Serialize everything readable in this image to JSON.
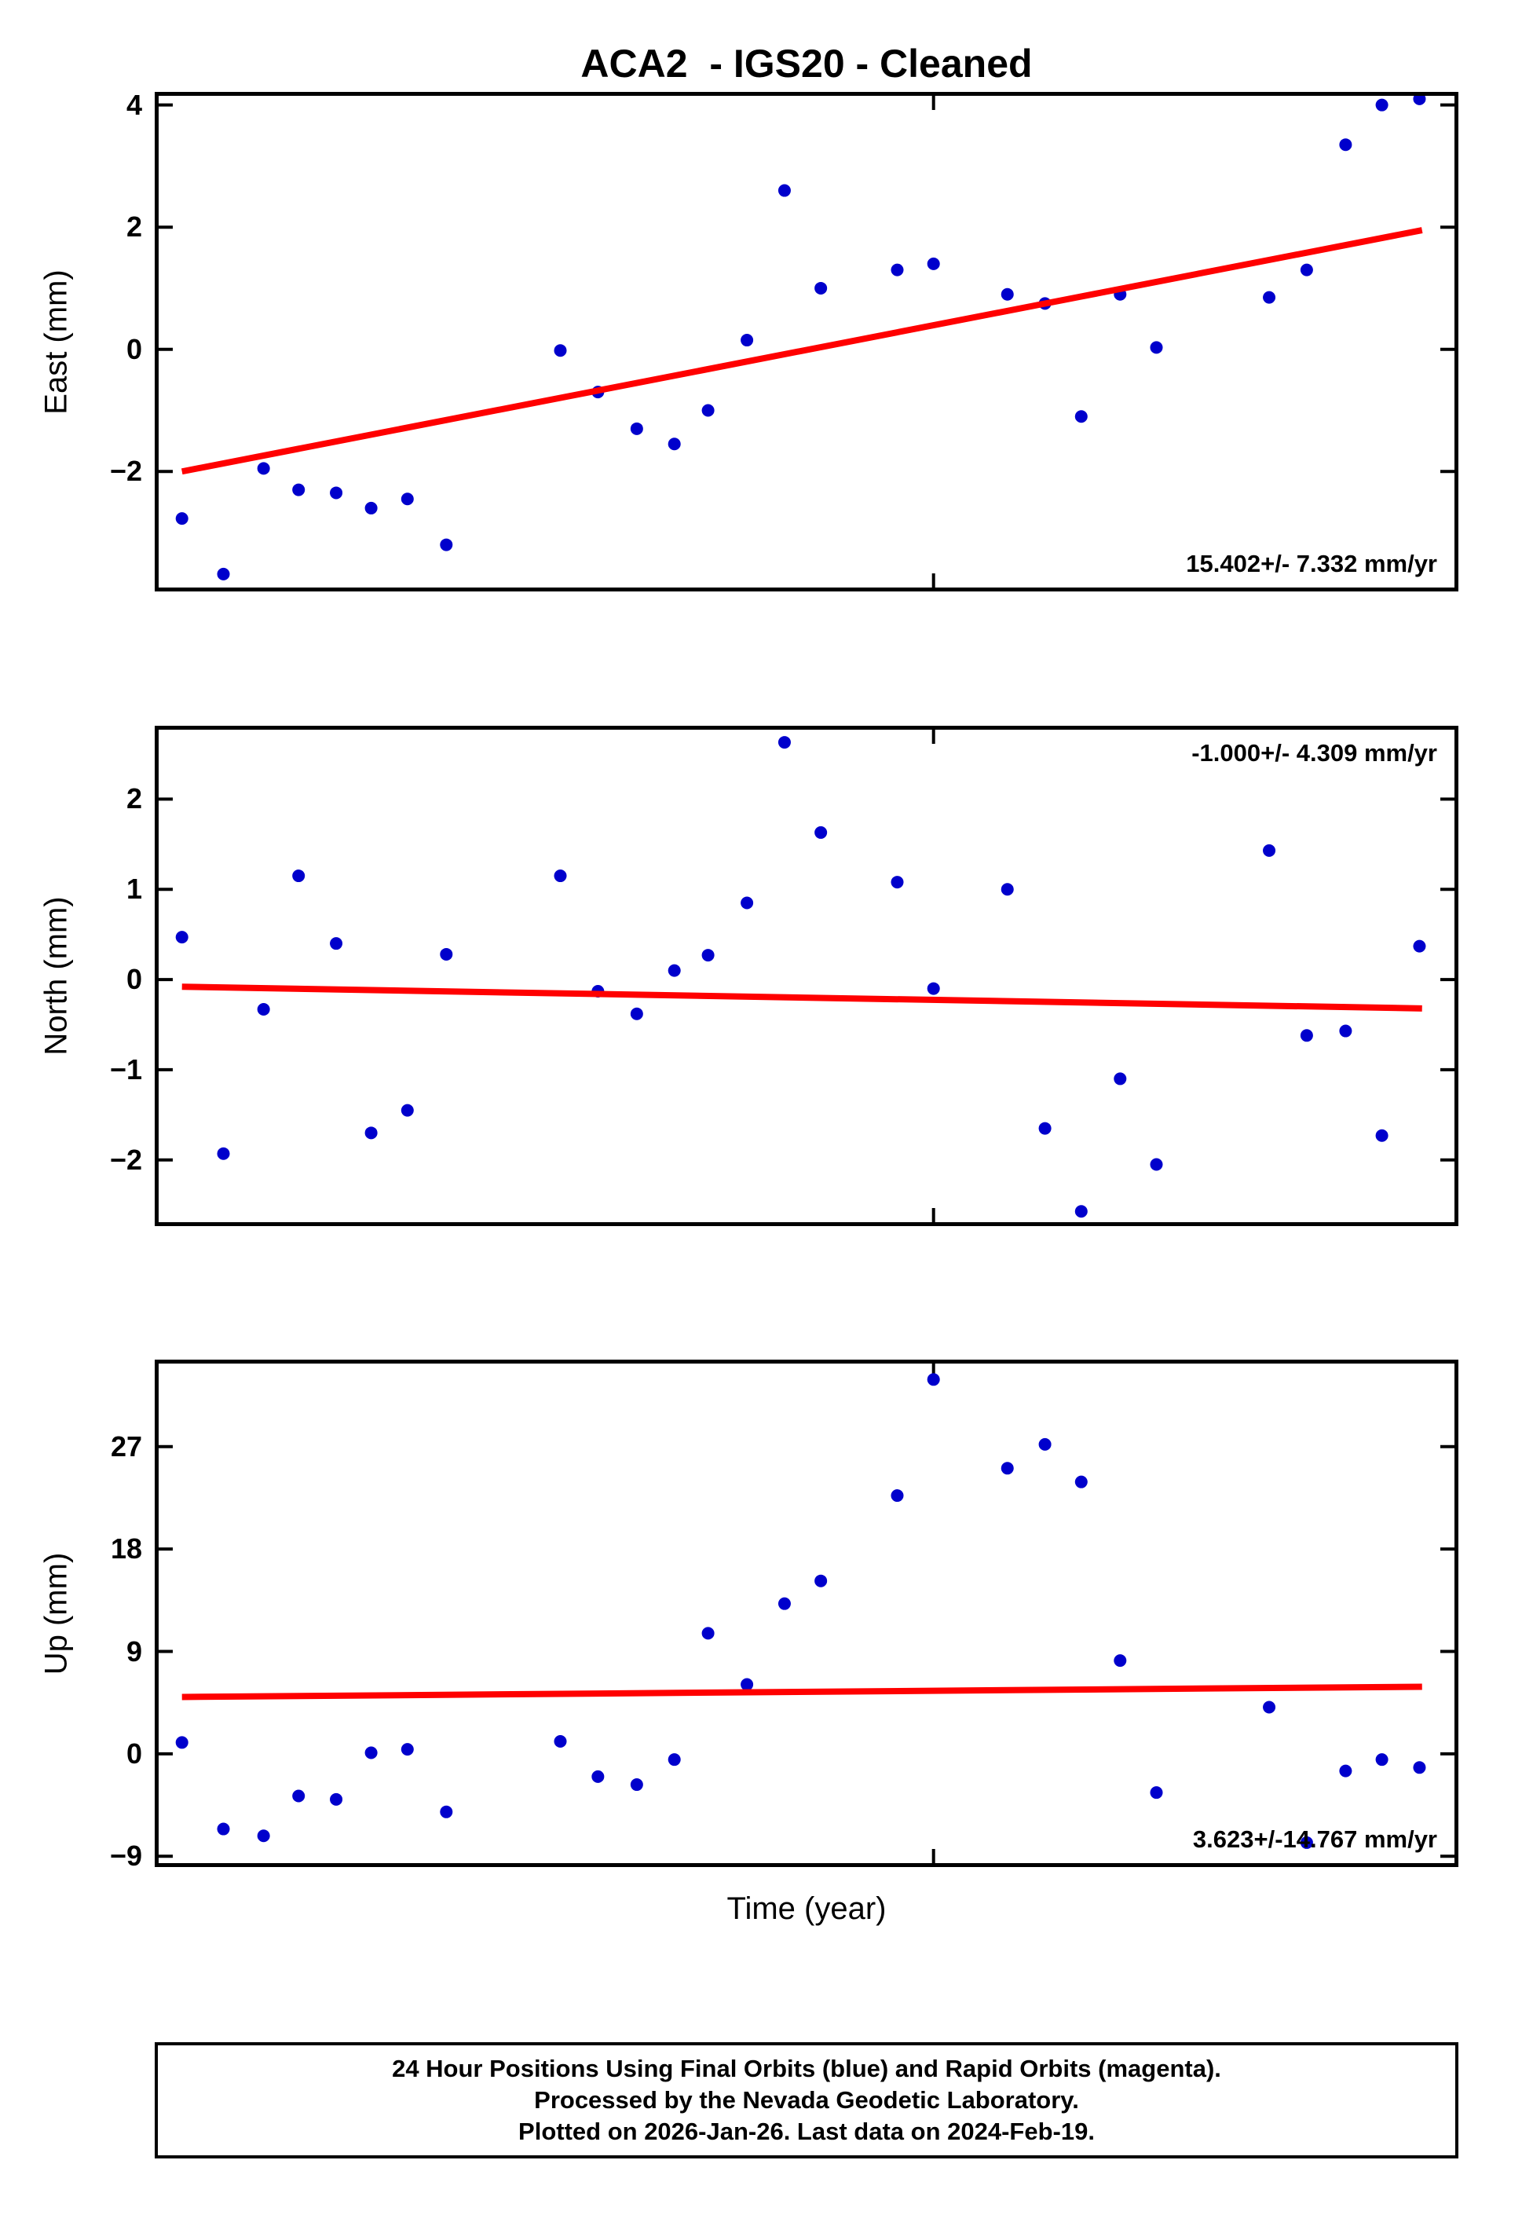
{
  "title": "ACA2  - IGS20 - Cleaned",
  "xlabel": "Time (year)",
  "footer": {
    "line1": "24 Hour Positions Using Final Orbits (blue) and Rapid Orbits (magenta).",
    "line2": "Processed by the Nevada Geodetic Laboratory.",
    "line3": "Plotted on 2026-Jan-26. Last data on 2024-Feb-19."
  },
  "colors": {
    "point": "#0000CC",
    "trend": "#FF0000",
    "frame": "#000000",
    "text": "#000000"
  },
  "chart_data": {
    "type": "scatter",
    "x": [
      0.018,
      0.05,
      0.081,
      0.108,
      0.137,
      0.164,
      0.192,
      0.222,
      0.31,
      0.339,
      0.369,
      0.398,
      0.424,
      0.454,
      0.483,
      0.511,
      0.57,
      0.598,
      0.655,
      0.684,
      0.712,
      0.742,
      0.77,
      0.857,
      0.886,
      0.916,
      0.944,
      0.973
    ],
    "panels": [
      {
        "ylabel": "East (mm)",
        "annotation": "15.402+/- 7.332 mm/yr",
        "annotation_pos": "bottom-right",
        "ylim": [
          -3.9,
          4.15
        ],
        "yticks": [
          {
            "v": 4,
            "label": "4"
          },
          {
            "v": 2,
            "label": "2"
          },
          {
            "v": 0,
            "label": "0"
          },
          {
            "v": -2,
            "label": "−2"
          }
        ],
        "xticks": [
          0.598
        ],
        "y": [
          -2.77,
          -3.68,
          -1.95,
          -2.3,
          -2.35,
          -2.6,
          -2.45,
          -3.2,
          -0.02,
          -0.7,
          -1.3,
          -1.55,
          -1.0,
          0.15,
          2.6,
          1.0,
          1.3,
          1.4,
          0.9,
          0.75,
          -1.1,
          0.9,
          0.03,
          0.85,
          1.3,
          3.35,
          4.0,
          4.1
        ],
        "trend": {
          "x0": 0.018,
          "y0": -2.0,
          "x1": 0.975,
          "y1": 1.95
        }
      },
      {
        "ylabel": "North (mm)",
        "annotation": "-1.000+/- 4.309 mm/yr",
        "annotation_pos": "top-right",
        "ylim": [
          -2.69,
          2.77
        ],
        "yticks": [
          {
            "v": 2,
            "label": "2"
          },
          {
            "v": 1,
            "label": "1"
          },
          {
            "v": 0,
            "label": "0"
          },
          {
            "v": -1,
            "label": "−1"
          },
          {
            "v": -2,
            "label": "−2"
          }
        ],
        "xticks": [
          0.598
        ],
        "y": [
          0.47,
          -1.93,
          -0.33,
          1.15,
          0.4,
          -1.7,
          -1.45,
          0.28,
          1.15,
          -0.13,
          -0.38,
          0.1,
          0.27,
          0.85,
          2.63,
          1.63,
          1.08,
          -0.1,
          1.0,
          -1.65,
          -2.57,
          -1.1,
          -2.05,
          1.43,
          -0.62,
          -0.57,
          -1.73,
          0.37
        ],
        "trend": {
          "x0": 0.018,
          "y0": -0.08,
          "x1": 0.975,
          "y1": -0.32
        }
      },
      {
        "ylabel": "Up (mm)",
        "annotation": "3.623+/-14.767 mm/yr",
        "annotation_pos": "bottom-right",
        "ylim": [
          -9.6,
          34.3
        ],
        "yticks": [
          {
            "v": 27,
            "label": "27"
          },
          {
            "v": 18,
            "label": "18"
          },
          {
            "v": 9,
            "label": "9"
          },
          {
            "v": 0,
            "label": "0"
          },
          {
            "v": -9,
            "label": "−9"
          }
        ],
        "xticks": [
          0.598
        ],
        "y": [
          1.0,
          -6.6,
          -7.2,
          -3.7,
          -4.0,
          0.1,
          0.4,
          -5.1,
          1.1,
          -2.0,
          -2.7,
          -0.5,
          10.6,
          6.1,
          13.2,
          15.2,
          22.7,
          32.9,
          25.1,
          27.2,
          23.9,
          8.2,
          -3.4,
          4.1,
          -7.8,
          -1.5,
          -0.5,
          -1.2
        ],
        "trend": {
          "x0": 0.018,
          "y0": 5.0,
          "x1": 0.975,
          "y1": 5.9
        }
      }
    ]
  }
}
